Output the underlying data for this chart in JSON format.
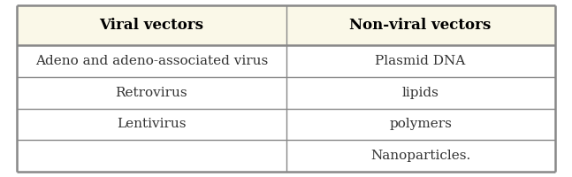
{
  "headers": [
    "Viral vectors",
    "Non-viral vectors"
  ],
  "rows": [
    [
      "Adeno and adeno-associated virus",
      "Plasmid DNA"
    ],
    [
      "Retrovirus",
      "lipids"
    ],
    [
      "Lentivirus",
      "polymers"
    ],
    [
      "",
      "Nanoparticles."
    ]
  ],
  "header_bg": "#faf8e8",
  "row_bg": "#ffffff",
  "border_color": "#888888",
  "header_text_color": "#000000",
  "row_text_color": "#333333",
  "header_fontsize": 12,
  "row_fontsize": 11,
  "fig_bg": "#ffffff"
}
